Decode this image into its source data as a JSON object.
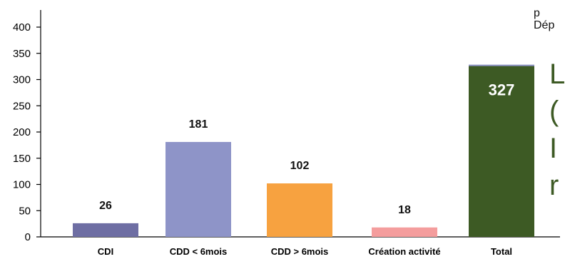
{
  "chart_data": {
    "type": "bar",
    "categories": [
      "CDI",
      "CDD < 6mois",
      "CDD > 6mois",
      "Création activité",
      "Total"
    ],
    "values": [
      26,
      181,
      102,
      18,
      327
    ],
    "value_labels": [
      "26",
      "181",
      "102",
      "18",
      "327"
    ],
    "ylim": [
      0,
      400
    ],
    "yticks": [
      0,
      50,
      100,
      150,
      200,
      250,
      300,
      350,
      400
    ],
    "ytick_labels": [
      "0",
      "50",
      "100",
      "150",
      "200",
      "250",
      "300",
      "350",
      "400"
    ],
    "colors": [
      "#6e6ea3",
      "#8e94c8",
      "#f7a240",
      "#f49d9d",
      "#3d5a24"
    ],
    "title": "",
    "xlabel": "",
    "ylabel": "",
    "grid": false,
    "legend": "none"
  },
  "side_text": {
    "line1": "p",
    "line2": "Dép",
    "fragments": [
      "L",
      "(",
      "I",
      "r"
    ],
    "color": "#3d5a24"
  }
}
